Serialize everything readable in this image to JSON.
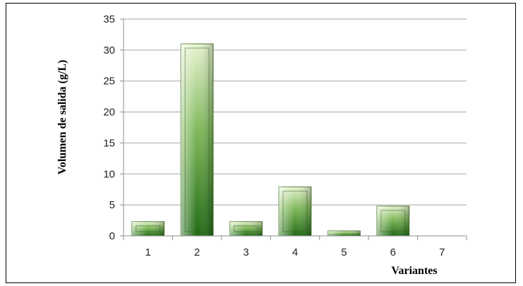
{
  "chart_data": {
    "type": "bar",
    "categories": [
      "1",
      "2",
      "3",
      "4",
      "5",
      "6",
      "7"
    ],
    "values": [
      2.3,
      31,
      2.3,
      7.9,
      0.8,
      4.8,
      0
    ],
    "xlabel": "Variantes",
    "ylabel": "Volumen de salida  (g/L)",
    "ylim": [
      0,
      35
    ],
    "yticks": [
      0,
      5,
      10,
      15,
      20,
      25,
      30,
      35
    ],
    "grid": true,
    "legend": "none",
    "colors": {
      "bar_dark": "#1f6a14",
      "bar_mid": "#7fb85a",
      "bar_light": "#e6f3cf",
      "bar_border": "#4d7a36",
      "gridline": "#a6a6a6",
      "axis": "#8c8c8c"
    }
  }
}
